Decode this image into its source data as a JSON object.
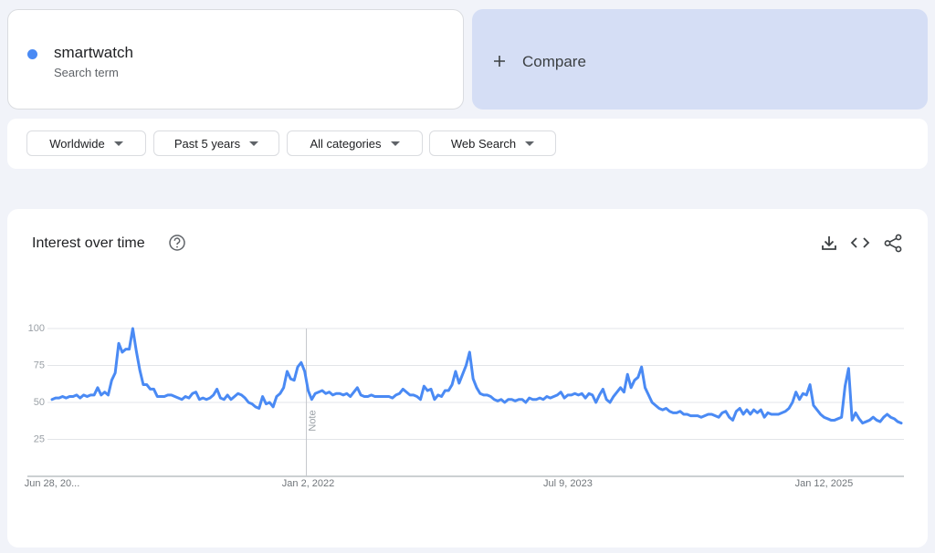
{
  "search_card": {
    "subtitle": "Search term",
    "compare": "Compare"
  },
  "filters": [
    "Worldwide",
    "Past 5 years",
    "All categories",
    "Web Search"
  ],
  "chart_data": {
    "type": "line",
    "title": "Interest over time",
    "annotation": "Note",
    "annotation_index": 73,
    "categories": [
      "Jun 28, 20...",
      null,
      null,
      null,
      null,
      null,
      null,
      null,
      null,
      null,
      null,
      null,
      null,
      null,
      null,
      null,
      null,
      null,
      null,
      null,
      null,
      null,
      null,
      null,
      null,
      null,
      null,
      null,
      null,
      null,
      null,
      null,
      null,
      null,
      null,
      null,
      null,
      null,
      null,
      null,
      null,
      null,
      null,
      null,
      null,
      null,
      null,
      null,
      null,
      null,
      null,
      null,
      null,
      null,
      null,
      null,
      null,
      null,
      null,
      null,
      null,
      null,
      null,
      null,
      null,
      null,
      null,
      null,
      null,
      null,
      null,
      null,
      null,
      "Jan 2, 2022",
      null,
      null,
      null,
      null,
      null,
      null,
      null,
      null,
      null,
      null,
      null,
      null,
      null,
      null,
      null,
      null,
      null,
      null,
      null,
      null,
      null,
      null,
      null,
      null,
      null,
      null,
      null,
      null,
      null,
      null,
      null,
      null,
      null,
      null,
      null,
      null,
      null,
      null,
      null,
      null,
      null,
      null,
      null,
      null,
      null,
      null,
      null,
      null,
      null,
      null,
      null,
      null,
      null,
      null,
      null,
      null,
      null,
      null,
      null,
      null,
      null,
      null,
      null,
      null,
      null,
      null,
      null,
      null,
      null,
      null,
      null,
      null,
      null,
      "Jul 9, 2023",
      null,
      null,
      null,
      null,
      null,
      null,
      null,
      null,
      null,
      null,
      null,
      null,
      null,
      null,
      null,
      null,
      null,
      null,
      null,
      null,
      null,
      null,
      null,
      null,
      null,
      null,
      null,
      null,
      null,
      null,
      null,
      null,
      null,
      null,
      null,
      null,
      null,
      null,
      null,
      null,
      null,
      null,
      null,
      null,
      null,
      null,
      null,
      null,
      null,
      null,
      null,
      null,
      null,
      null,
      null,
      null,
      null,
      null,
      null,
      null,
      null,
      null,
      null,
      null,
      null,
      null,
      null,
      null,
      null,
      null,
      null,
      null,
      "Jan 12, 2025",
      null,
      null,
      null,
      null,
      null,
      null,
      null,
      null,
      null,
      null,
      null,
      null,
      null,
      null,
      null,
      null,
      null,
      null,
      null,
      null,
      null,
      null
    ],
    "series": [
      {
        "name": "smartwatch",
        "color": "#4a8af4",
        "values": [
          52,
          53,
          53,
          54,
          53,
          54,
          54,
          55,
          53,
          55,
          54,
          55,
          55,
          60,
          55,
          57,
          55,
          65,
          70,
          90,
          84,
          86,
          86,
          100,
          85,
          72,
          62,
          62,
          59,
          59,
          54,
          54,
          54,
          55,
          55,
          54,
          53,
          52,
          54,
          53,
          56,
          57,
          52,
          53,
          52,
          53,
          55,
          59,
          53,
          52,
          55,
          52,
          54,
          56,
          55,
          53,
          50,
          49,
          47,
          46,
          54,
          49,
          50,
          47,
          54,
          56,
          60,
          71,
          66,
          65,
          74,
          77,
          71,
          58,
          52,
          56,
          57,
          58,
          56,
          57,
          55,
          56,
          56,
          55,
          56,
          54,
          57,
          60,
          55,
          54,
          54,
          55,
          54,
          54,
          54,
          54,
          54,
          53,
          55,
          56,
          59,
          57,
          55,
          55,
          54,
          52,
          61,
          58,
          59,
          52,
          55,
          54,
          58,
          58,
          62,
          71,
          63,
          69,
          75,
          84,
          66,
          60,
          56,
          55,
          55,
          54,
          52,
          51,
          52,
          50,
          52,
          52,
          51,
          52,
          52,
          50,
          53,
          52,
          52,
          53,
          52,
          54,
          53,
          54,
          55,
          57,
          53,
          55,
          55,
          56,
          55,
          56,
          53,
          56,
          55,
          50,
          55,
          59,
          52,
          50,
          54,
          57,
          60,
          57,
          69,
          60,
          65,
          67,
          74,
          60,
          55,
          50,
          48,
          46,
          45,
          46,
          44,
          43,
          43,
          44,
          42,
          42,
          41,
          41,
          41,
          40,
          41,
          42,
          42,
          41,
          40,
          43,
          44,
          40,
          38,
          44,
          46,
          42,
          45,
          42,
          45,
          43,
          45,
          40,
          43,
          42,
          42,
          42,
          43,
          44,
          46,
          50,
          57,
          52,
          56,
          55,
          62,
          48,
          45,
          42,
          40,
          39,
          38,
          38,
          39,
          40,
          61,
          73,
          38,
          43,
          39,
          36,
          37,
          38,
          40,
          38,
          37,
          40,
          42,
          40,
          39,
          37,
          36
        ]
      }
    ],
    "ylim": [
      0,
      100
    ],
    "yticks": [
      25,
      50,
      75,
      100
    ],
    "grid": true
  }
}
